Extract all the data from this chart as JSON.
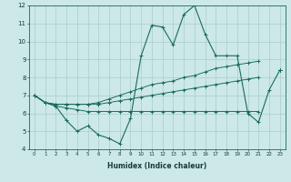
{
  "xlabel": "Humidex (Indice chaleur)",
  "x": [
    0,
    1,
    2,
    3,
    4,
    5,
    6,
    7,
    8,
    9,
    10,
    11,
    12,
    13,
    14,
    15,
    16,
    17,
    18,
    19,
    20,
    21,
    22,
    23
  ],
  "line_main": [
    7.0,
    6.6,
    6.4,
    5.6,
    5.0,
    5.3,
    4.8,
    4.6,
    4.3,
    5.7,
    9.2,
    10.9,
    10.8,
    9.8,
    11.5,
    12.0,
    10.4,
    9.2,
    9.2,
    9.2,
    6.0,
    5.5,
    7.3,
    8.4
  ],
  "line_upper": [
    7.0,
    6.6,
    6.5,
    6.5,
    6.5,
    6.5,
    6.6,
    6.8,
    7.0,
    7.2,
    7.4,
    7.6,
    7.7,
    7.8,
    8.0,
    8.1,
    8.3,
    8.5,
    8.6,
    8.7,
    8.8,
    8.9,
    null,
    8.4
  ],
  "line_lower": [
    7.0,
    6.6,
    6.4,
    6.3,
    6.2,
    6.1,
    6.1,
    6.1,
    6.1,
    6.1,
    6.1,
    6.1,
    6.1,
    6.1,
    6.1,
    6.1,
    6.1,
    6.1,
    6.1,
    6.1,
    6.1,
    6.1,
    null,
    8.4
  ],
  "line_mid": [
    7.0,
    6.6,
    6.5,
    6.5,
    6.5,
    6.5,
    6.5,
    6.6,
    6.7,
    6.8,
    6.9,
    7.0,
    7.1,
    7.2,
    7.3,
    7.4,
    7.5,
    7.6,
    7.7,
    7.8,
    7.9,
    8.0,
    null,
    8.4
  ],
  "bg_color": "#cce8e8",
  "grid_color": "#aacccc",
  "line_color": "#1a6b5a",
  "ylim": [
    4,
    12
  ],
  "yticks": [
    4,
    5,
    6,
    7,
    8,
    9,
    10,
    11,
    12
  ],
  "xticks": [
    0,
    1,
    2,
    3,
    4,
    5,
    6,
    7,
    8,
    9,
    10,
    11,
    12,
    13,
    14,
    15,
    16,
    17,
    18,
    19,
    20,
    21,
    22,
    23
  ]
}
